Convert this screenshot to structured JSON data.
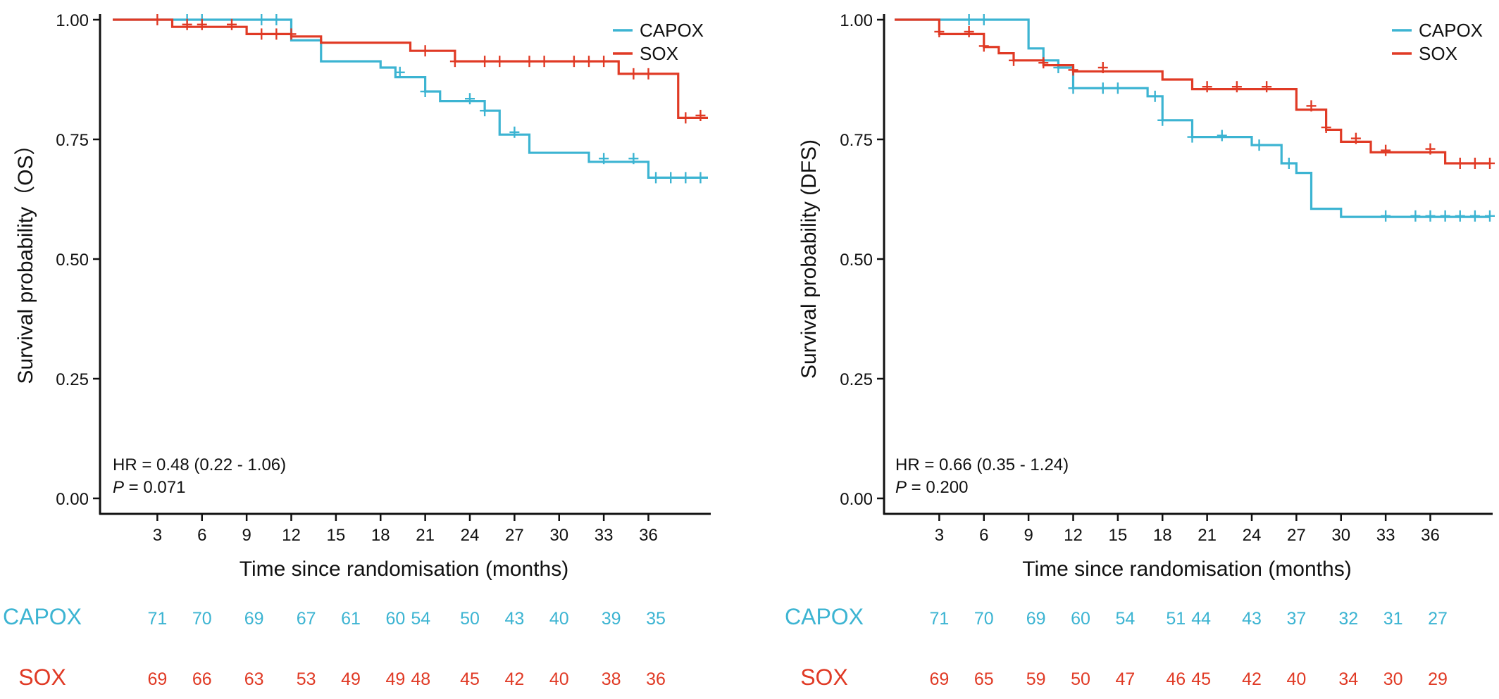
{
  "colors": {
    "CAPOX": "#3cb4d2",
    "SOX": "#e03a25",
    "axis": "#111111"
  },
  "chart_data": [
    {
      "type": "line",
      "subtype": "kaplan-meier",
      "title": "",
      "xlabel": "Time since randomisation (months)",
      "ylabel": "Survival probability（OS）",
      "xlim": [
        0,
        40
      ],
      "ylim": [
        0,
        1
      ],
      "xticks": [
        3,
        6,
        9,
        12,
        15,
        18,
        21,
        24,
        27,
        30,
        33,
        36
      ],
      "yticks": [
        0,
        0.25,
        0.5,
        0.75,
        1.0
      ],
      "ytick_labels": [
        "0.00",
        "0.25",
        "0.50",
        "0.75",
        "1.00"
      ],
      "grid": false,
      "legend_position": "top-right",
      "annotation": {
        "hr": "HR = 0.48 (0.22 -  1.06)",
        "p_label": "P",
        "p_value": " = 0.071"
      },
      "series": [
        {
          "name": "CAPOX",
          "color": "CAPOX",
          "steps": [
            [
              0,
              1.0
            ],
            [
              12,
              0.957
            ],
            [
              14,
              0.913
            ],
            [
              18,
              0.9
            ],
            [
              19,
              0.88
            ],
            [
              21,
              0.85
            ],
            [
              22,
              0.83
            ],
            [
              25,
              0.81
            ],
            [
              26,
              0.76
            ],
            [
              28,
              0.722
            ],
            [
              32,
              0.703
            ],
            [
              36,
              0.67
            ],
            [
              40,
              0.67
            ]
          ],
          "censor": [
            [
              5,
              1.0
            ],
            [
              6,
              1.0
            ],
            [
              10,
              1.0
            ],
            [
              11,
              1.0
            ],
            [
              19.3,
              0.89
            ],
            [
              21,
              0.85
            ],
            [
              24,
              0.835
            ],
            [
              25,
              0.81
            ],
            [
              27,
              0.765
            ],
            [
              33,
              0.71
            ],
            [
              35,
              0.71
            ],
            [
              36.5,
              0.67
            ],
            [
              37.5,
              0.67
            ],
            [
              38.5,
              0.67
            ],
            [
              39.5,
              0.67
            ]
          ]
        },
        {
          "name": "SOX",
          "color": "SOX",
          "steps": [
            [
              0,
              1.0
            ],
            [
              4,
              0.985
            ],
            [
              9,
              0.97
            ],
            [
              12,
              0.965
            ],
            [
              14,
              0.952
            ],
            [
              20,
              0.935
            ],
            [
              23,
              0.913
            ],
            [
              34,
              0.887
            ],
            [
              38,
              0.795
            ],
            [
              40,
              0.795
            ]
          ],
          "censor": [
            [
              3,
              1.0
            ],
            [
              5,
              0.99
            ],
            [
              6,
              0.99
            ],
            [
              8,
              0.99
            ],
            [
              10,
              0.97
            ],
            [
              11,
              0.97
            ],
            [
              12,
              0.97
            ],
            [
              21,
              0.935
            ],
            [
              23,
              0.913
            ],
            [
              25,
              0.913
            ],
            [
              26,
              0.913
            ],
            [
              28,
              0.913
            ],
            [
              29,
              0.913
            ],
            [
              31,
              0.913
            ],
            [
              32,
              0.913
            ],
            [
              33,
              0.913
            ],
            [
              35,
              0.887
            ],
            [
              36,
              0.887
            ],
            [
              38.5,
              0.795
            ],
            [
              39.5,
              0.8
            ]
          ]
        }
      ],
      "risk_table": {
        "groups": [
          "CAPOX",
          "SOX"
        ],
        "CAPOX": [
          [
            3,
            "71"
          ],
          [
            6,
            "70"
          ],
          [
            9.5,
            "69"
          ],
          [
            13,
            "67"
          ],
          [
            16,
            "61"
          ],
          [
            19,
            "60"
          ],
          [
            20.7,
            "54"
          ],
          [
            24,
            "50"
          ],
          [
            27,
            "43"
          ],
          [
            30,
            "40"
          ],
          [
            33.5,
            "39"
          ],
          [
            36.5,
            "35"
          ]
        ],
        "SOX": [
          [
            3,
            "69"
          ],
          [
            6,
            "66"
          ],
          [
            9.5,
            "63"
          ],
          [
            13,
            "53"
          ],
          [
            16,
            "49"
          ],
          [
            19,
            "49"
          ],
          [
            20.7,
            "48"
          ],
          [
            24,
            "45"
          ],
          [
            27,
            "42"
          ],
          [
            30,
            "40"
          ],
          [
            33.5,
            "38"
          ],
          [
            36.5,
            "36"
          ]
        ]
      }
    },
    {
      "type": "line",
      "subtype": "kaplan-meier",
      "title": "",
      "xlabel": "Time since randomisation (months)",
      "ylabel": "Survival probability (DFS)",
      "xlim": [
        0,
        40
      ],
      "ylim": [
        0,
        1
      ],
      "xticks": [
        3,
        6,
        9,
        12,
        15,
        18,
        21,
        24,
        27,
        30,
        33,
        36
      ],
      "yticks": [
        0,
        0.25,
        0.5,
        0.75,
        1.0
      ],
      "ytick_labels": [
        "0.00",
        "0.25",
        "0.50",
        "0.75",
        "1.00"
      ],
      "grid": false,
      "legend_position": "top-right",
      "annotation": {
        "hr": "HR = 0.66 (0.35 -  1.24)",
        "p_label": "P",
        "p_value": " = 0.200"
      },
      "series": [
        {
          "name": "CAPOX",
          "color": "CAPOX",
          "steps": [
            [
              0,
              1.0
            ],
            [
              9,
              0.94
            ],
            [
              10,
              0.915
            ],
            [
              11,
              0.9
            ],
            [
              12,
              0.857
            ],
            [
              17,
              0.84
            ],
            [
              18,
              0.79
            ],
            [
              20,
              0.755
            ],
            [
              24,
              0.738
            ],
            [
              26,
              0.7
            ],
            [
              27,
              0.68
            ],
            [
              28,
              0.605
            ],
            [
              30,
              0.588
            ],
            [
              40,
              0.588
            ]
          ],
          "censor": [
            [
              5,
              1.0
            ],
            [
              6,
              1.0
            ],
            [
              10,
              0.915
            ],
            [
              11,
              0.9
            ],
            [
              12,
              0.857
            ],
            [
              14,
              0.857
            ],
            [
              15,
              0.857
            ],
            [
              17.5,
              0.84
            ],
            [
              18,
              0.79
            ],
            [
              20,
              0.755
            ],
            [
              22,
              0.758
            ],
            [
              24.5,
              0.738
            ],
            [
              26.5,
              0.7
            ],
            [
              33,
              0.59
            ],
            [
              35,
              0.59
            ],
            [
              36,
              0.59
            ],
            [
              37,
              0.59
            ],
            [
              38,
              0.59
            ],
            [
              39,
              0.59
            ],
            [
              40,
              0.59
            ]
          ]
        },
        {
          "name": "SOX",
          "color": "SOX",
          "steps": [
            [
              0,
              1.0
            ],
            [
              3,
              0.97
            ],
            [
              6,
              0.943
            ],
            [
              7,
              0.93
            ],
            [
              8,
              0.915
            ],
            [
              10,
              0.905
            ],
            [
              12,
              0.892
            ],
            [
              18,
              0.875
            ],
            [
              20,
              0.855
            ],
            [
              27,
              0.812
            ],
            [
              29,
              0.77
            ],
            [
              30,
              0.745
            ],
            [
              32,
              0.723
            ],
            [
              37,
              0.7
            ],
            [
              40,
              0.7
            ]
          ],
          "censor": [
            [
              3,
              0.975
            ],
            [
              5,
              0.975
            ],
            [
              6,
              0.945
            ],
            [
              8,
              0.915
            ],
            [
              10,
              0.91
            ],
            [
              12,
              0.895
            ],
            [
              14,
              0.9
            ],
            [
              21,
              0.86
            ],
            [
              23,
              0.86
            ],
            [
              25,
              0.86
            ],
            [
              28,
              0.82
            ],
            [
              29,
              0.775
            ],
            [
              31,
              0.752
            ],
            [
              33,
              0.727
            ],
            [
              36,
              0.73
            ],
            [
              38,
              0.7
            ],
            [
              39,
              0.7
            ],
            [
              40,
              0.7
            ]
          ]
        }
      ],
      "risk_table": {
        "groups": [
          "CAPOX",
          "SOX"
        ],
        "CAPOX": [
          [
            3,
            "71"
          ],
          [
            6,
            "70"
          ],
          [
            9.5,
            "69"
          ],
          [
            12.5,
            "60"
          ],
          [
            15.5,
            "54"
          ],
          [
            18.9,
            "51"
          ],
          [
            20.6,
            "44"
          ],
          [
            24,
            "43"
          ],
          [
            27,
            "37"
          ],
          [
            30.5,
            "32"
          ],
          [
            33.5,
            "31"
          ],
          [
            36.5,
            "27"
          ]
        ],
        "SOX": [
          [
            3,
            "69"
          ],
          [
            6,
            "65"
          ],
          [
            9.5,
            "59"
          ],
          [
            12.5,
            "50"
          ],
          [
            15.5,
            "47"
          ],
          [
            18.9,
            "46"
          ],
          [
            20.6,
            "45"
          ],
          [
            24,
            "42"
          ],
          [
            27,
            "40"
          ],
          [
            30.5,
            "34"
          ],
          [
            33.5,
            "30"
          ],
          [
            36.5,
            "29"
          ]
        ]
      }
    }
  ]
}
